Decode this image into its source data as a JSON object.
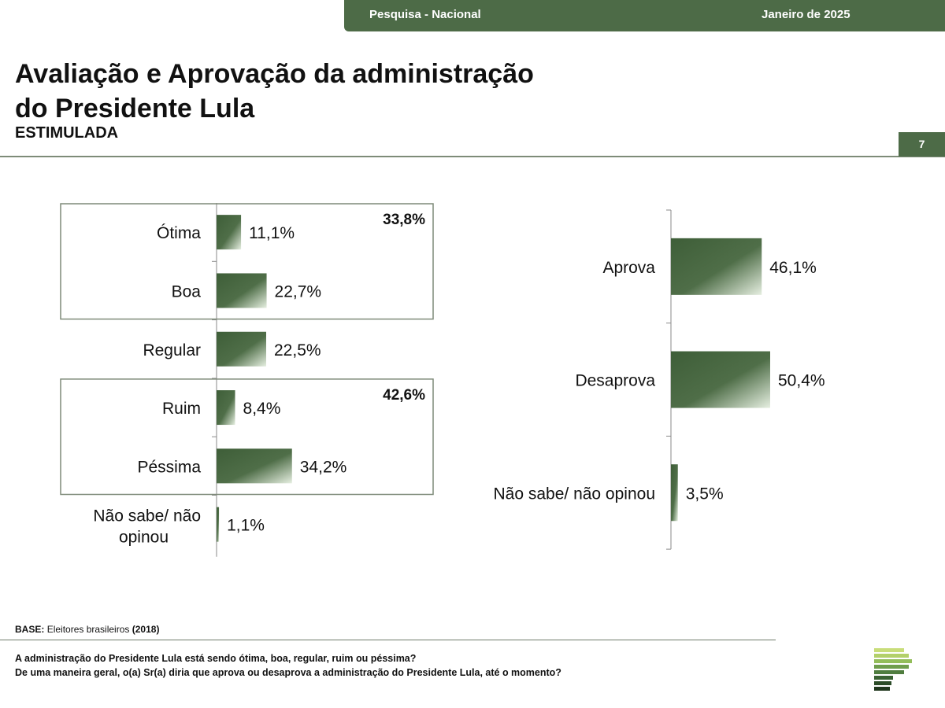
{
  "header": {
    "left": "Pesquisa - Nacional",
    "right": "Janeiro de 2025"
  },
  "title_line1": "Avaliação e Aprovação da administração",
  "title_line2": "do Presidente Lula",
  "subtitle": "ESTIMULADA",
  "page_number": "7",
  "colors": {
    "bar": "#3e5e38",
    "bar_light": "#e6efe1",
    "accent": "#4d6b47"
  },
  "chart_data": [
    {
      "type": "bar",
      "orientation": "horizontal",
      "categories": [
        "Ótima",
        "Boa",
        "Regular",
        "Ruim",
        "Péssima",
        "Não sabe/ não opinou"
      ],
      "values": [
        11.1,
        22.7,
        22.5,
        8.4,
        34.2,
        1.1
      ],
      "value_labels": [
        "11,1%",
        "22,7%",
        "22,5%",
        "8,4%",
        "34,2%",
        "1,1%"
      ],
      "groups": [
        {
          "label": "33,8%",
          "members": [
            "Ótima",
            "Boa"
          ]
        },
        {
          "label": "42,6%",
          "members": [
            "Ruim",
            "Péssima"
          ]
        }
      ]
    },
    {
      "type": "bar",
      "orientation": "horizontal",
      "categories": [
        "Aprova",
        "Desaprova",
        "Não sabe/ não opinou"
      ],
      "values": [
        46.1,
        50.4,
        3.5
      ],
      "value_labels": [
        "46,1%",
        "50,4%",
        "3,5%"
      ]
    }
  ],
  "footer": {
    "base_label": "BASE:",
    "base_text": "Eleitores brasileiros",
    "base_year": "(2018)",
    "question1": "A administração do Presidente Lula está sendo ótima, boa, regular, ruim ou péssima?",
    "question2": "De uma maneira geral, o(a) Sr(a) diria que aprova ou desaprova a administração do Presidente Lula, até o momento?"
  }
}
